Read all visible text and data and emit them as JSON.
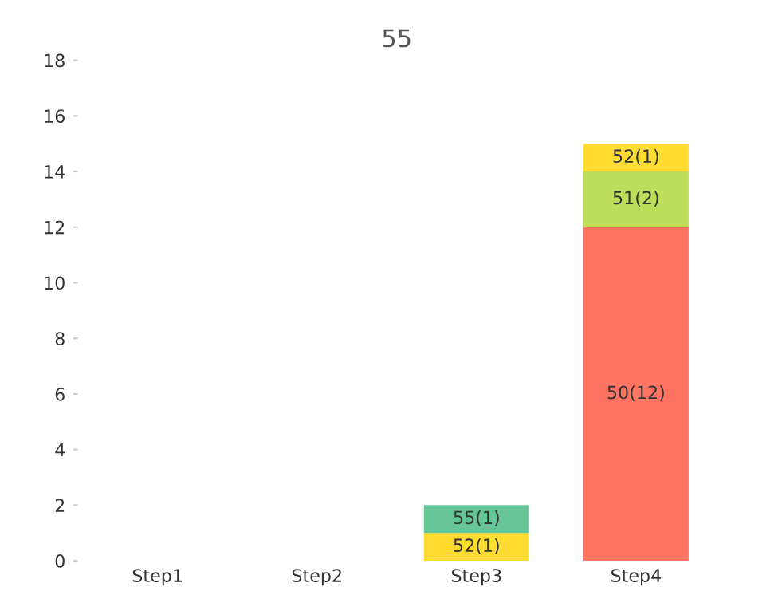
{
  "chart_data": {
    "type": "bar",
    "title": "55",
    "stacked": true,
    "categories": [
      "Step1",
      "Step2",
      "Step3",
      "Step4"
    ],
    "series": [
      {
        "color": "#ff7362",
        "values": [
          null,
          null,
          null,
          12
        ],
        "value_labels": [
          null,
          null,
          null,
          "50(12)"
        ]
      },
      {
        "color": "#bedd5a",
        "values": [
          null,
          null,
          null,
          2
        ],
        "value_labels": [
          null,
          null,
          null,
          "51(2)"
        ]
      },
      {
        "color": "#ffdc32",
        "values": [
          null,
          null,
          1,
          1
        ],
        "value_labels": [
          null,
          null,
          "52(1)",
          "52(1)"
        ]
      },
      {
        "color": "#66c597",
        "values": [
          null,
          null,
          1,
          null
        ],
        "value_labels": [
          null,
          null,
          "55(1)",
          null
        ]
      }
    ],
    "ylim": [
      0,
      18
    ],
    "yticks": [
      0,
      2,
      4,
      6,
      8,
      10,
      12,
      14,
      16,
      18
    ],
    "grid": false,
    "legend": false
  }
}
